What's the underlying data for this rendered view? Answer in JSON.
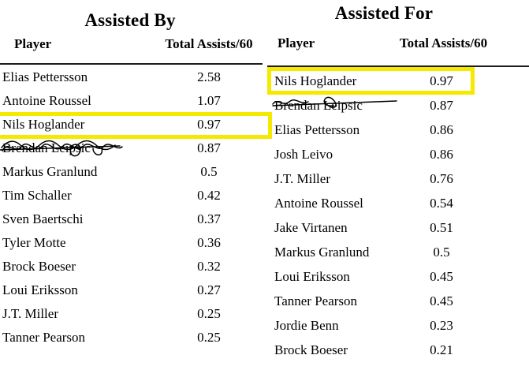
{
  "highlight_color": "#f5e900",
  "tables": [
    {
      "title": "Assisted By",
      "columns": {
        "player": "Player",
        "assists": "Total Assists/60"
      },
      "rows": [
        {
          "player": "Elias Pettersson",
          "value": "2.58"
        },
        {
          "player": "Antoine Roussel",
          "value": "1.07"
        },
        {
          "player": "Nils Hoglander",
          "value": "0.97",
          "highlighted": true
        },
        {
          "player": "Brendan Leipsic",
          "value": "0.87",
          "crossed_out": true
        },
        {
          "player": "Markus Granlund",
          "value": "0.5"
        },
        {
          "player": "Tim Schaller",
          "value": "0.42"
        },
        {
          "player": "Sven Baertschi",
          "value": "0.37"
        },
        {
          "player": "Tyler Motte",
          "value": "0.36"
        },
        {
          "player": "Brock Boeser",
          "value": "0.32"
        },
        {
          "player": "Loui Eriksson",
          "value": "0.27"
        },
        {
          "player": "J.T. Miller",
          "value": "0.25"
        },
        {
          "player": "Tanner Pearson",
          "value": "0.25"
        }
      ]
    },
    {
      "title": "Assisted For",
      "columns": {
        "player": "Player",
        "assists": "Total Assists/60"
      },
      "rows": [
        {
          "player": "Nils Hoglander",
          "value": "0.97",
          "highlighted": true
        },
        {
          "player": "Brendan Leipsic",
          "value": "0.87",
          "crossed_out": true
        },
        {
          "player": "Elias Pettersson",
          "value": "0.86"
        },
        {
          "player": "Josh Leivo",
          "value": "0.86"
        },
        {
          "player": "J.T. Miller",
          "value": "0.76"
        },
        {
          "player": "Antoine Roussel",
          "value": "0.54"
        },
        {
          "player": "Jake Virtanen",
          "value": "0.51"
        },
        {
          "player": "Markus Granlund",
          "value": "0.5"
        },
        {
          "player": "Loui Eriksson",
          "value": "0.45"
        },
        {
          "player": "Tanner Pearson",
          "value": "0.45"
        },
        {
          "player": "Jordie Benn",
          "value": "0.23"
        },
        {
          "player": "Brock Boeser",
          "value": "0.21"
        }
      ]
    }
  ]
}
